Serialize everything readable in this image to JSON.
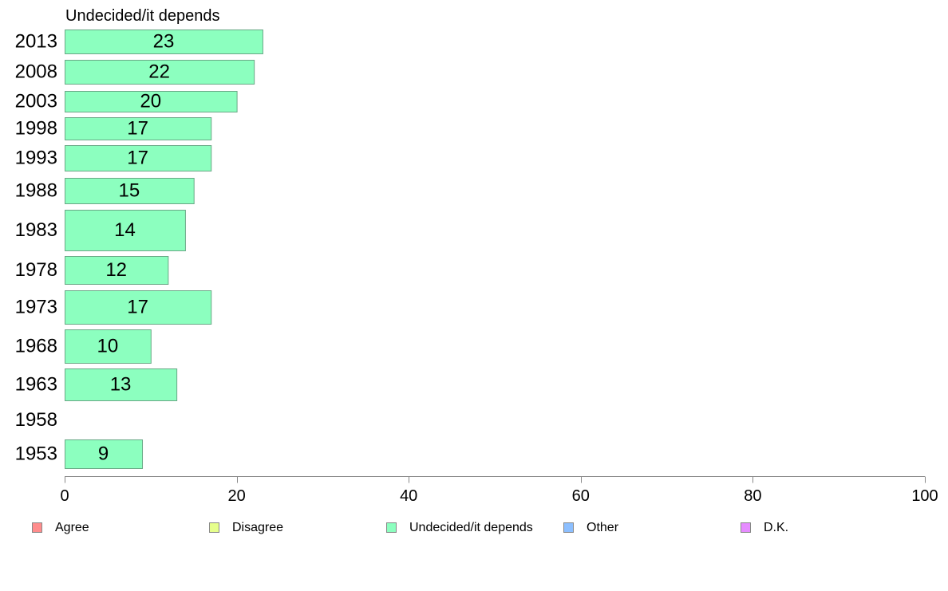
{
  "chart_data": {
    "type": "bar",
    "orientation": "horizontal",
    "title": "Undecided/it depends",
    "categories": [
      "2013",
      "2008",
      "2003",
      "1998",
      "1993",
      "1988",
      "1983",
      "1978",
      "1973",
      "1968",
      "1963",
      "1958",
      "1953"
    ],
    "values": [
      23,
      22,
      20,
      17,
      17,
      15,
      14,
      12,
      17,
      10,
      13,
      null,
      9
    ],
    "value_labels": [
      "23",
      "22",
      "20",
      "17",
      "17",
      "15",
      "14",
      "12",
      "17",
      "10",
      "13",
      "",
      "9"
    ],
    "xlim": [
      0,
      100
    ],
    "x_ticks": [
      0,
      20,
      40,
      60,
      80,
      100
    ],
    "x_tick_labels": [
      "0",
      "20",
      "40",
      "60",
      "80",
      "100"
    ],
    "grid": false,
    "bar_color": "#8cffbf",
    "bar_stroke": "#6aa886",
    "legend": {
      "placement": "bottom",
      "items": [
        {
          "label": "Agree",
          "color": "#ff8c8c"
        },
        {
          "label": "Disagree",
          "color": "#e6ff8c"
        },
        {
          "label": "Undecided/it depends",
          "color": "#8cffbf"
        },
        {
          "label": "Other",
          "color": "#8cbfff"
        },
        {
          "label": "D.K.",
          "color": "#e68cff"
        }
      ]
    }
  }
}
